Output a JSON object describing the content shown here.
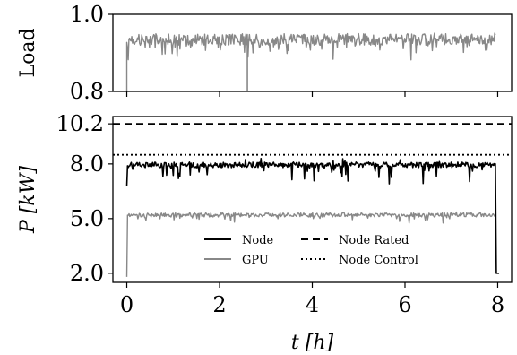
{
  "chart_data": [
    {
      "type": "line",
      "ylabel": "Load",
      "ylim": [
        0.8,
        1.0
      ],
      "xlim": [
        -0.3,
        8.3
      ],
      "yticks": [
        "0.8",
        "1.0"
      ],
      "yticks_values": [
        0.8,
        1.0
      ],
      "series": [
        {
          "color": "#888888",
          "mean": 0.935,
          "x_start": 0.0,
          "x_end": 7.95,
          "dips": [
            {
              "x": 0.0,
              "y": 0.8
            },
            {
              "x": 2.6,
              "y": 0.8
            }
          ]
        }
      ]
    },
    {
      "type": "line",
      "ylabel": "P [kW]",
      "xlabel": "t [h]",
      "xlim": [
        -0.3,
        8.3
      ],
      "ylim": [
        1.5,
        10.6
      ],
      "xticks": [
        "0",
        "2",
        "4",
        "6",
        "8"
      ],
      "xticks_values": [
        0,
        2,
        4,
        6,
        8
      ],
      "yticks": [
        "2.0",
        "5.0",
        "8.0",
        "10.2"
      ],
      "yticks_values": [
        2.0,
        5.0,
        8.0,
        10.2
      ],
      "legend_position": "lower-center",
      "series": [
        {
          "name": "Node",
          "color": "#000000",
          "style": "solid",
          "mean": 7.95,
          "x_start": 0.0,
          "x_end": 7.95,
          "start_value": 6.8,
          "end_value": 2.0
        },
        {
          "name": "GPU",
          "color": "#888888",
          "style": "solid",
          "mean": 5.2,
          "x_start": 0.0,
          "x_end": 7.95,
          "start_value": 1.8
        },
        {
          "name": "Node Rated",
          "color": "#000000",
          "style": "dashed",
          "value": 10.2
        },
        {
          "name": "Node Control",
          "color": "#000000",
          "style": "dotted",
          "value": 8.5
        }
      ]
    }
  ]
}
